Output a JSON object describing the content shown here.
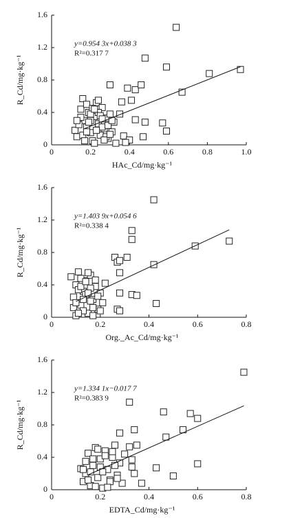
{
  "chart_data": [
    {
      "type": "scatter",
      "xlabel": "HAc_Cd/mg·kg⁻¹",
      "ylabel": "R_Cd/mg·kg⁻¹",
      "equation": "y=0.954 3x+0.038 3",
      "r2": "R²=0.317 7",
      "xlim": [
        0,
        1
      ],
      "ylim": [
        0,
        1.6
      ],
      "xticks": [
        0,
        0.2,
        0.4,
        0.6,
        0.8,
        {
          "value": 1,
          "label": "1.0"
        }
      ],
      "yticks": [
        0,
        0.4,
        0.8,
        1.2,
        1.6
      ],
      "x": [
        0.64,
        0.48,
        0.59,
        0.97,
        0.81,
        0.67,
        0.3,
        0.39,
        0.43,
        0.46,
        0.41,
        0.36,
        0.35,
        0.43,
        0.48,
        0.57,
        0.59,
        0.47,
        0.37,
        0.4,
        0.38,
        0.12,
        0.13,
        0.15,
        0.16,
        0.17,
        0.18,
        0.19,
        0.2,
        0.21,
        0.22,
        0.23,
        0.24,
        0.25,
        0.26,
        0.27,
        0.28,
        0.29,
        0.3,
        0.31,
        0.32,
        0.33,
        0.14,
        0.16,
        0.18,
        0.2,
        0.22,
        0.24,
        0.26,
        0.28,
        0.15,
        0.17,
        0.19,
        0.21,
        0.23,
        0.25,
        0.27,
        0.29,
        0.31,
        0.13,
        0.2,
        0.24,
        0.18,
        0.22,
        0.26,
        0.3
      ],
      "values": [
        1.45,
        1.07,
        0.96,
        0.93,
        0.88,
        0.65,
        0.74,
        0.7,
        0.68,
        0.74,
        0.55,
        0.53,
        0.38,
        0.31,
        0.28,
        0.27,
        0.17,
        0.1,
        0.11,
        0.06,
        0.03,
        0.18,
        0.1,
        0.44,
        0.57,
        0.3,
        0.22,
        0.4,
        0.15,
        0.05,
        0.35,
        0.52,
        0.26,
        0.12,
        0.46,
        0.2,
        0.33,
        0.08,
        0.38,
        0.16,
        0.28,
        0.02,
        0.25,
        0.12,
        0.5,
        0.3,
        0.02,
        0.4,
        0.22,
        0.1,
        0.34,
        0.05,
        0.28,
        0.45,
        0.18,
        0.36,
        0.06,
        0.24,
        0.3,
        0.3,
        0.38,
        0.55,
        0.16,
        0.44,
        0.32,
        0.13
      ],
      "fit_line": {
        "x": [
          0.17,
          0.97
        ],
        "y": [
          0.201,
          0.964
        ]
      }
    },
    {
      "type": "scatter",
      "xlabel": "Org._Ac_Cd/mg·kg⁻¹",
      "ylabel": "R_Cd/mg·kg⁻¹",
      "equation": "y=1.403 9x+0.054 6",
      "r2": "R²=0.338 4",
      "xlim": [
        0,
        0.8
      ],
      "ylim": [
        0,
        1.6
      ],
      "xticks": [
        0,
        0.2,
        0.4,
        0.6,
        0.8
      ],
      "yticks": [
        0,
        0.4,
        0.8,
        1.2,
        1.6
      ],
      "x": [
        0.42,
        0.33,
        0.33,
        0.73,
        0.59,
        0.31,
        0.26,
        0.27,
        0.28,
        0.42,
        0.28,
        0.28,
        0.33,
        0.35,
        0.43,
        0.27,
        0.28,
        0.08,
        0.09,
        0.1,
        0.11,
        0.12,
        0.13,
        0.14,
        0.15,
        0.16,
        0.17,
        0.18,
        0.19,
        0.2,
        0.21,
        0.22,
        0.09,
        0.1,
        0.11,
        0.12,
        0.13,
        0.14,
        0.15,
        0.16,
        0.17,
        0.18,
        0.19,
        0.1,
        0.12,
        0.14,
        0.16,
        0.11,
        0.13,
        0.15,
        0.17,
        0.2
      ],
      "values": [
        1.45,
        1.07,
        0.96,
        0.94,
        0.88,
        0.74,
        0.74,
        0.68,
        0.7,
        0.65,
        0.55,
        0.3,
        0.28,
        0.27,
        0.17,
        0.1,
        0.08,
        0.5,
        0.25,
        0.4,
        0.56,
        0.15,
        0.32,
        0.45,
        0.05,
        0.52,
        0.22,
        0.38,
        0.1,
        0.3,
        0.18,
        0.42,
        0.12,
        0.02,
        0.34,
        0.48,
        0.08,
        0.28,
        0.55,
        0.2,
        0.02,
        0.46,
        0.26,
        0.18,
        0.38,
        0.44,
        0.36,
        0.05,
        0.22,
        0.3,
        0.12,
        0.08
      ],
      "fit_line": {
        "x": [
          0.1,
          0.73
        ],
        "y": [
          0.195,
          1.079
        ]
      }
    },
    {
      "type": "scatter",
      "xlabel": "EDTA_Cd/mg·kg⁻¹",
      "ylabel": "R_Cd/mg·kg⁻¹",
      "equation": "y=1.334 1x−0.017 7",
      "r2": "R²=0.383 9",
      "xlim": [
        0,
        0.8
      ],
      "ylim": [
        0,
        1.6
      ],
      "xticks": [
        0,
        0.2,
        0.4,
        0.6,
        0.8
      ],
      "yticks": [
        0,
        0.4,
        0.8,
        1.2,
        1.6
      ],
      "x": [
        0.79,
        0.32,
        0.46,
        0.57,
        0.6,
        0.34,
        0.54,
        0.28,
        0.47,
        0.32,
        0.35,
        0.33,
        0.43,
        0.33,
        0.6,
        0.5,
        0.34,
        0.37,
        0.12,
        0.13,
        0.14,
        0.15,
        0.16,
        0.17,
        0.18,
        0.19,
        0.2,
        0.21,
        0.22,
        0.23,
        0.24,
        0.25,
        0.26,
        0.27,
        0.28,
        0.29,
        0.3,
        0.14,
        0.16,
        0.18,
        0.2,
        0.22,
        0.24,
        0.26,
        0.15,
        0.17,
        0.19,
        0.21,
        0.23,
        0.25,
        0.13,
        0.27
      ],
      "values": [
        1.45,
        1.08,
        0.96,
        0.94,
        0.88,
        0.74,
        0.74,
        0.7,
        0.65,
        0.53,
        0.55,
        0.37,
        0.27,
        0.28,
        0.32,
        0.17,
        0.2,
        0.08,
        0.26,
        0.1,
        0.2,
        0.45,
        0.05,
        0.3,
        0.52,
        0.15,
        0.38,
        0.02,
        0.48,
        0.25,
        0.12,
        0.4,
        0.55,
        0.18,
        0.33,
        0.08,
        0.44,
        0.35,
        0.22,
        0.04,
        0.28,
        0.42,
        0.1,
        0.3,
        0.12,
        0.38,
        0.5,
        0.22,
        0.03,
        0.47,
        0.25,
        0.14
      ],
      "fit_line": {
        "x": [
          0.15,
          0.79
        ],
        "y": [
          0.183,
          1.036
        ]
      }
    }
  ]
}
